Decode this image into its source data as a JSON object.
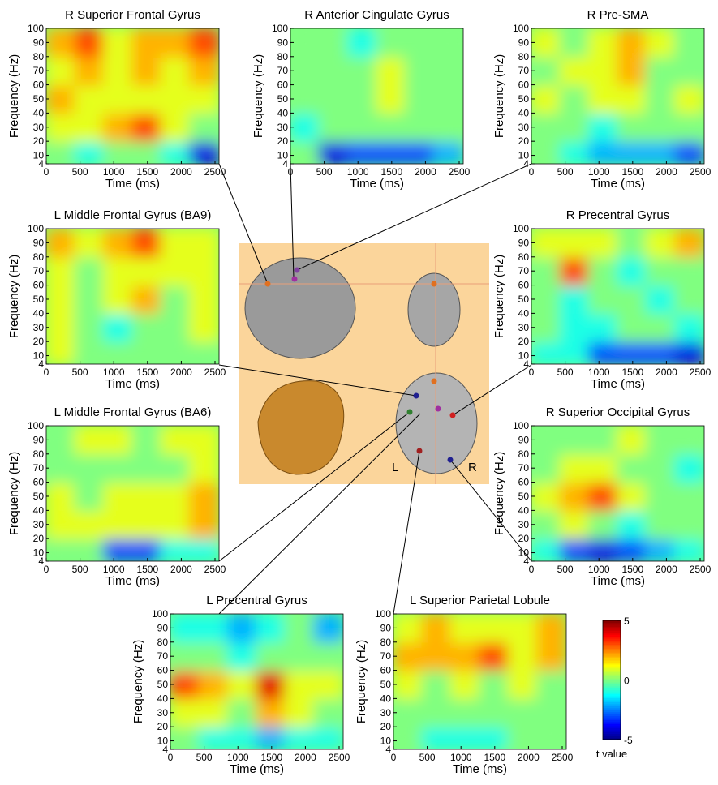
{
  "chart_data": [
    {
      "type": "heatmap",
      "title": "R Superior Frontal Gyrus",
      "xlabel": "Time (ms)",
      "ylabel": "Frequency (Hz)",
      "xlim": [
        0,
        2560
      ],
      "ylim": [
        4,
        100
      ],
      "xticks": [
        0,
        500,
        1000,
        1500,
        2000,
        2500
      ],
      "yticks": [
        4,
        10,
        20,
        30,
        40,
        50,
        60,
        70,
        80,
        90,
        100
      ],
      "xbins": [
        0,
        425,
        850,
        1275,
        1700,
        2125,
        2560
      ],
      "ybins": [
        4,
        20,
        40,
        60,
        80,
        100
      ],
      "values": [
        [
          0,
          -1,
          0,
          0,
          -1,
          -4
        ],
        [
          1,
          1,
          2,
          3,
          1,
          0
        ],
        [
          2,
          1,
          1,
          1,
          1,
          1
        ],
        [
          1,
          2,
          1,
          2,
          1,
          2
        ],
        [
          2,
          3,
          1,
          2,
          2,
          3
        ]
      ]
    },
    {
      "type": "heatmap",
      "title": "R Anterior Cingulate Gyrus",
      "xlabel": "Time (ms)",
      "ylabel": "Frequency (Hz)",
      "xlim": [
        0,
        2560
      ],
      "ylim": [
        4,
        100
      ],
      "xticks": [
        0,
        500,
        1000,
        1500,
        2000,
        2500
      ],
      "yticks": [
        4,
        10,
        20,
        30,
        40,
        50,
        60,
        70,
        80,
        90,
        100
      ],
      "xbins": [
        0,
        425,
        850,
        1275,
        1700,
        2125,
        2560
      ],
      "ybins": [
        4,
        20,
        40,
        60,
        80,
        100
      ],
      "values": [
        [
          0,
          -4,
          -3,
          -3,
          -3,
          -2
        ],
        [
          -1,
          0,
          0,
          0,
          0,
          0
        ],
        [
          0,
          0,
          0,
          1,
          0,
          0
        ],
        [
          0,
          0,
          0,
          1,
          0,
          0
        ],
        [
          0,
          0,
          -1,
          0,
          0,
          0
        ]
      ]
    },
    {
      "type": "heatmap",
      "title": "R Pre-SMA",
      "xlabel": "Time (ms)",
      "ylabel": "Frequency (Hz)",
      "xlim": [
        0,
        2560
      ],
      "ylim": [
        4,
        100
      ],
      "xticks": [
        0,
        500,
        1000,
        1500,
        2000,
        2500
      ],
      "yticks": [
        4,
        10,
        20,
        30,
        40,
        50,
        60,
        70,
        80,
        90,
        100
      ],
      "xbins": [
        0,
        425,
        850,
        1275,
        1700,
        2125,
        2560
      ],
      "ybins": [
        4,
        20,
        40,
        60,
        80,
        100
      ],
      "values": [
        [
          0,
          -1,
          -2,
          -2,
          -2,
          -3
        ],
        [
          0,
          0,
          -1,
          0,
          0,
          0
        ],
        [
          1,
          0,
          1,
          1,
          0,
          1
        ],
        [
          0,
          1,
          1,
          2,
          0,
          0
        ],
        [
          1,
          0,
          1,
          2,
          1,
          0
        ]
      ]
    },
    {
      "type": "heatmap",
      "title": "L Middle Frontal Gyrus (BA9)",
      "xlabel": "Time (ms)",
      "ylabel": "Frequency (Hz)",
      "xlim": [
        0,
        2560
      ],
      "ylim": [
        4,
        100
      ],
      "xticks": [
        0,
        500,
        1000,
        1500,
        2000,
        2500
      ],
      "yticks": [
        4,
        10,
        20,
        30,
        40,
        50,
        60,
        70,
        80,
        90,
        100
      ],
      "xbins": [
        0,
        425,
        850,
        1275,
        1700,
        2125,
        2560
      ],
      "ybins": [
        4,
        20,
        40,
        60,
        80,
        100
      ],
      "values": [
        [
          1,
          0,
          0,
          0,
          0,
          0
        ],
        [
          1,
          0,
          -1,
          0,
          0,
          1
        ],
        [
          1,
          0,
          1,
          2,
          0,
          1
        ],
        [
          1,
          0,
          1,
          1,
          1,
          1
        ],
        [
          2,
          1,
          2,
          3,
          1,
          1
        ]
      ]
    },
    {
      "type": "heatmap",
      "title": "R Precentral Gyrus",
      "xlabel": "Time (ms)",
      "ylabel": "Frequency (Hz)",
      "xlim": [
        0,
        2560
      ],
      "ylim": [
        4,
        100
      ],
      "xticks": [
        0,
        500,
        1000,
        1500,
        2000,
        2500
      ],
      "yticks": [
        4,
        10,
        20,
        30,
        40,
        50,
        60,
        70,
        80,
        90,
        100
      ],
      "xbins": [
        0,
        425,
        850,
        1275,
        1700,
        2125,
        2560
      ],
      "ybins": [
        4,
        20,
        40,
        60,
        80,
        100
      ],
      "values": [
        [
          -1,
          -1,
          -3,
          -3,
          -3,
          -4
        ],
        [
          0,
          -1,
          -1,
          0,
          0,
          -1
        ],
        [
          0,
          -1,
          0,
          0,
          -1,
          0
        ],
        [
          0,
          3,
          0,
          -1,
          0,
          0
        ],
        [
          1,
          1,
          1,
          0,
          1,
          2
        ]
      ]
    },
    {
      "type": "heatmap",
      "title": "L Middle Frontal Gyrus (BA6)",
      "xlabel": "Time (ms)",
      "ylabel": "Frequency (Hz)",
      "xlim": [
        0,
        2560
      ],
      "ylim": [
        4,
        100
      ],
      "xticks": [
        0,
        500,
        1000,
        1500,
        2000,
        2500
      ],
      "yticks": [
        4,
        10,
        20,
        30,
        40,
        50,
        60,
        70,
        80,
        90,
        100
      ],
      "xbins": [
        0,
        425,
        850,
        1275,
        1700,
        2125,
        2560
      ],
      "ybins": [
        4,
        20,
        40,
        60,
        80,
        100
      ],
      "values": [
        [
          0,
          0,
          -3,
          -3,
          -1,
          -1
        ],
        [
          1,
          1,
          1,
          1,
          1,
          2
        ],
        [
          1,
          0,
          1,
          1,
          1,
          2
        ],
        [
          0,
          0,
          0,
          0,
          0,
          1
        ],
        [
          0,
          1,
          1,
          0,
          1,
          1
        ]
      ]
    },
    {
      "type": "heatmap",
      "title": "R Superior Occipital Gyrus",
      "xlabel": "Time (ms)",
      "ylabel": "Frequency (Hz)",
      "xlim": [
        0,
        2560
      ],
      "ylim": [
        4,
        100
      ],
      "xticks": [
        0,
        500,
        1000,
        1500,
        2000,
        2500
      ],
      "yticks": [
        4,
        10,
        20,
        30,
        40,
        50,
        60,
        70,
        80,
        90,
        100
      ],
      "xbins": [
        0,
        425,
        850,
        1275,
        1700,
        2125,
        2560
      ],
      "ybins": [
        4,
        20,
        40,
        60,
        80,
        100
      ],
      "values": [
        [
          -1,
          -3,
          -4,
          -3,
          -2,
          -1
        ],
        [
          0,
          1,
          0,
          -1,
          0,
          0
        ],
        [
          1,
          2,
          3,
          1,
          0,
          0
        ],
        [
          0,
          1,
          1,
          0,
          0,
          -1
        ],
        [
          0,
          0,
          0,
          1,
          0,
          0
        ]
      ]
    },
    {
      "type": "heatmap",
      "title": "L Precentral Gyrus",
      "xlabel": "Time (ms)",
      "ylabel": "Frequency (Hz)",
      "xlim": [
        0,
        2560
      ],
      "ylim": [
        4,
        100
      ],
      "xticks": [
        0,
        500,
        1000,
        1500,
        2000,
        2500
      ],
      "yticks": [
        4,
        10,
        20,
        30,
        40,
        50,
        60,
        70,
        80,
        90,
        100
      ],
      "xbins": [
        0,
        425,
        850,
        1275,
        1700,
        2125,
        2560
      ],
      "ybins": [
        4,
        20,
        40,
        60,
        80,
        100
      ],
      "values": [
        [
          0,
          -1,
          -1,
          -2,
          -1,
          -1
        ],
        [
          1,
          1,
          0,
          2,
          1,
          0
        ],
        [
          3,
          2,
          1,
          4,
          1,
          1
        ],
        [
          0,
          0,
          -1,
          0,
          0,
          0
        ],
        [
          -1,
          -1,
          -2,
          -1,
          0,
          -2
        ]
      ]
    },
    {
      "type": "heatmap",
      "title": "L Superior Parietal Lobule",
      "xlabel": "Time (ms)",
      "ylabel": "Frequency (Hz)",
      "xlim": [
        0,
        2560
      ],
      "ylim": [
        4,
        100
      ],
      "xticks": [
        0,
        500,
        1000,
        1500,
        2000,
        2500
      ],
      "yticks": [
        4,
        10,
        20,
        30,
        40,
        50,
        60,
        70,
        80,
        90,
        100
      ],
      "xbins": [
        0,
        425,
        850,
        1275,
        1700,
        2125,
        2560
      ],
      "ybins": [
        4,
        20,
        40,
        60,
        80,
        100
      ],
      "values": [
        [
          0,
          -1,
          -1,
          -1,
          0,
          0
        ],
        [
          0,
          0,
          0,
          0,
          0,
          0
        ],
        [
          1,
          0,
          1,
          0,
          1,
          0
        ],
        [
          2,
          2,
          2,
          3,
          1,
          2
        ],
        [
          1,
          2,
          1,
          1,
          1,
          2
        ]
      ]
    }
  ],
  "colorbar": {
    "zlim": [
      -5,
      5
    ],
    "zticks": [
      -5,
      0,
      5
    ],
    "label": "t value",
    "colormap": "jet"
  },
  "brain_labels": [
    "L",
    "R"
  ]
}
